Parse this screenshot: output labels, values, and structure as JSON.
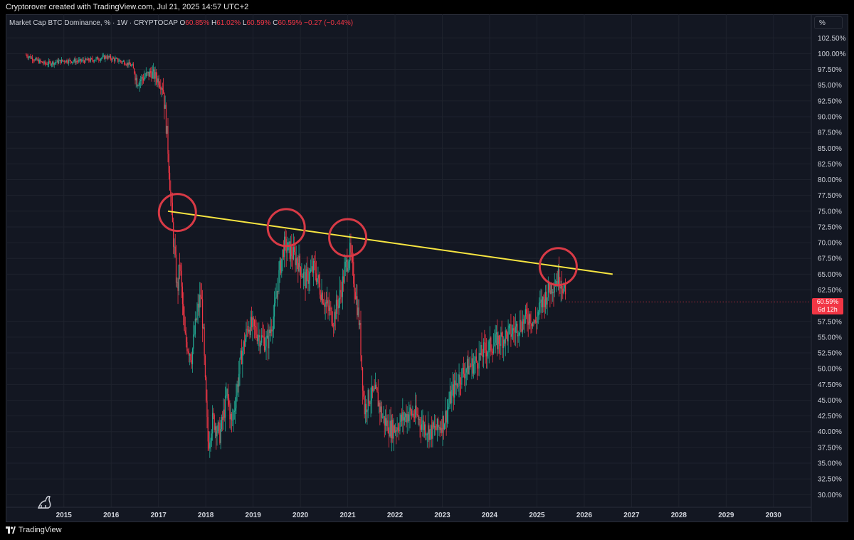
{
  "header": {
    "credit": "Cryptorover created with TradingView.com, Jul 21, 2025 14:57 UTC+2"
  },
  "legend": {
    "symbol": "Market Cap BTC Dominance, % · 1W · CRYPTOCAP",
    "open_label": "O",
    "open": "60.85%",
    "high_label": "H",
    "high": "61.02%",
    "low_label": "L",
    "low": "60.59%",
    "close_label": "C",
    "close": "60.59%",
    "change": "−0.27 (−0.44%)"
  },
  "axis_unit": "%",
  "price_tag": {
    "price": "60.59%",
    "countdown": "6d 12h"
  },
  "footer": {
    "brand": "TradingView"
  },
  "colors": {
    "up": "#22ab94",
    "down": "#f23645",
    "trendline": "#f7e541",
    "circle": "#d83a46",
    "background": "#131722",
    "grid": "#1e222d"
  },
  "chart_data": {
    "type": "candlestick",
    "x_range": [
      2013.8,
      2030.8
    ],
    "y_range": [
      28,
      104
    ],
    "y_ticks": [
      "102.50%",
      "100.00%",
      "97.50%",
      "95.00%",
      "92.50%",
      "90.00%",
      "87.50%",
      "85.00%",
      "82.50%",
      "80.00%",
      "77.50%",
      "75.00%",
      "72.50%",
      "70.00%",
      "67.50%",
      "65.00%",
      "62.50%",
      "57.50%",
      "55.00%",
      "52.50%",
      "50.00%",
      "47.50%",
      "45.00%",
      "42.50%",
      "40.00%",
      "37.50%",
      "35.00%",
      "32.50%",
      "30.00%"
    ],
    "x_ticks": [
      "2015",
      "2016",
      "2017",
      "2018",
      "2019",
      "2020",
      "2021",
      "2022",
      "2023",
      "2024",
      "2025",
      "2026",
      "2027",
      "2028",
      "2029",
      "2030"
    ],
    "last_price": 60.59,
    "trendline": {
      "start": [
        2017.2,
        75.0
      ],
      "end": [
        2026.6,
        65.0
      ]
    },
    "highlight_circles": [
      {
        "x": 2017.4,
        "y": 74.8
      },
      {
        "x": 2019.7,
        "y": 72.4
      },
      {
        "x": 2021.0,
        "y": 70.8
      },
      {
        "x": 2025.45,
        "y": 66.2
      }
    ],
    "price_path": [
      [
        2014.2,
        99.8
      ],
      [
        2014.4,
        99.0
      ],
      [
        2014.6,
        98.4
      ],
      [
        2014.8,
        98.6
      ],
      [
        2015.0,
        98.9
      ],
      [
        2015.3,
        98.8
      ],
      [
        2015.6,
        99.0
      ],
      [
        2015.9,
        99.5
      ],
      [
        2016.1,
        99.0
      ],
      [
        2016.3,
        98.6
      ],
      [
        2016.45,
        98.0
      ],
      [
        2016.55,
        95.5
      ],
      [
        2016.7,
        96.3
      ],
      [
        2016.85,
        97.0
      ],
      [
        2017.0,
        95.8
      ],
      [
        2017.1,
        94.5
      ],
      [
        2017.15,
        90.0
      ],
      [
        2017.2,
        85.0
      ],
      [
        2017.25,
        78.0
      ],
      [
        2017.32,
        70.0
      ],
      [
        2017.4,
        62.0
      ],
      [
        2017.45,
        67.0
      ],
      [
        2017.55,
        55.0
      ],
      [
        2017.7,
        52.0
      ],
      [
        2017.8,
        58.0
      ],
      [
        2017.9,
        62.0
      ],
      [
        2017.95,
        55.0
      ],
      [
        2018.0,
        45.0
      ],
      [
        2018.05,
        38.0
      ],
      [
        2018.15,
        42.0
      ],
      [
        2018.3,
        39.5
      ],
      [
        2018.45,
        46.0
      ],
      [
        2018.55,
        41.0
      ],
      [
        2018.75,
        52.0
      ],
      [
        2018.9,
        57.0
      ],
      [
        2019.0,
        56.5
      ],
      [
        2019.15,
        55.0
      ],
      [
        2019.3,
        54.0
      ],
      [
        2019.45,
        59.0
      ],
      [
        2019.55,
        65.0
      ],
      [
        2019.65,
        69.5
      ],
      [
        2019.8,
        68.5
      ],
      [
        2019.95,
        67.0
      ],
      [
        2020.1,
        64.0
      ],
      [
        2020.3,
        66.0
      ],
      [
        2020.4,
        63.0
      ],
      [
        2020.55,
        60.0
      ],
      [
        2020.7,
        58.0
      ],
      [
        2020.85,
        62.0
      ],
      [
        2020.95,
        66.0
      ],
      [
        2021.05,
        68.5
      ],
      [
        2021.15,
        63.0
      ],
      [
        2021.25,
        57.0
      ],
      [
        2021.3,
        50.0
      ],
      [
        2021.35,
        43.5
      ],
      [
        2021.45,
        45.5
      ],
      [
        2021.6,
        46.0
      ],
      [
        2021.75,
        42.0
      ],
      [
        2021.9,
        40.5
      ],
      [
        2022.0,
        40.5
      ],
      [
        2022.15,
        42.0
      ],
      [
        2022.3,
        43.0
      ],
      [
        2022.45,
        42.5
      ],
      [
        2022.6,
        41.0
      ],
      [
        2022.75,
        40.0
      ],
      [
        2022.9,
        40.5
      ],
      [
        2023.05,
        42.0
      ],
      [
        2023.2,
        46.0
      ],
      [
        2023.35,
        48.5
      ],
      [
        2023.5,
        50.0
      ],
      [
        2023.7,
        51.0
      ],
      [
        2023.9,
        53.0
      ],
      [
        2024.1,
        54.0
      ],
      [
        2024.3,
        55.0
      ],
      [
        2024.5,
        56.0
      ],
      [
        2024.7,
        57.5
      ],
      [
        2024.85,
        58.5
      ],
      [
        2024.95,
        57.0
      ],
      [
        2025.05,
        59.5
      ],
      [
        2025.15,
        61.0
      ],
      [
        2025.25,
        62.5
      ],
      [
        2025.35,
        63.5
      ],
      [
        2025.45,
        64.5
      ],
      [
        2025.52,
        64.0
      ],
      [
        2025.58,
        62.0
      ],
      [
        2025.62,
        60.6
      ]
    ]
  }
}
